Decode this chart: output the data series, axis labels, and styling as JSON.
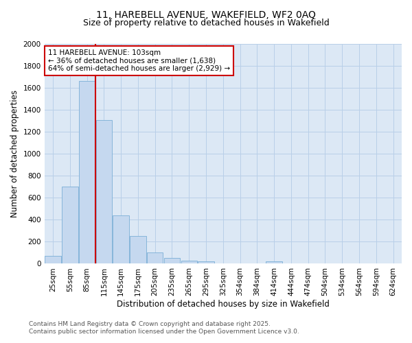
{
  "title": "11, HAREBELL AVENUE, WAKEFIELD, WF2 0AQ",
  "subtitle": "Size of property relative to detached houses in Wakefield",
  "xlabel": "Distribution of detached houses by size in Wakefield",
  "ylabel": "Number of detached properties",
  "categories": [
    "25sqm",
    "55sqm",
    "85sqm",
    "115sqm",
    "145sqm",
    "175sqm",
    "205sqm",
    "235sqm",
    "265sqm",
    "295sqm",
    "325sqm",
    "354sqm",
    "384sqm",
    "414sqm",
    "444sqm",
    "474sqm",
    "504sqm",
    "534sqm",
    "564sqm",
    "594sqm",
    "624sqm"
  ],
  "values": [
    70,
    700,
    1660,
    1310,
    440,
    255,
    100,
    55,
    30,
    22,
    0,
    0,
    0,
    20,
    0,
    0,
    0,
    0,
    0,
    0,
    0
  ],
  "bar_color": "#c5d8ef",
  "bar_edge_color": "#7aaed6",
  "vline_color": "#cc0000",
  "vline_x_index": 2.5,
  "ylim": [
    0,
    2000
  ],
  "yticks": [
    0,
    200,
    400,
    600,
    800,
    1000,
    1200,
    1400,
    1600,
    1800,
    2000
  ],
  "annotation_text": "11 HAREBELL AVENUE: 103sqm\n← 36% of detached houses are smaller (1,638)\n64% of semi-detached houses are larger (2,929) →",
  "annotation_box_color": "#ffffff",
  "annotation_box_edge": "#cc0000",
  "footer_line1": "Contains HM Land Registry data © Crown copyright and database right 2025.",
  "footer_line2": "Contains public sector information licensed under the Open Government Licence v3.0.",
  "bg_color": "#ffffff",
  "plot_bg_color": "#dce8f5",
  "grid_color": "#b8cfe8",
  "title_fontsize": 10,
  "subtitle_fontsize": 9,
  "axis_label_fontsize": 8.5,
  "tick_fontsize": 7.5,
  "annotation_fontsize": 7.5,
  "footer_fontsize": 6.5
}
